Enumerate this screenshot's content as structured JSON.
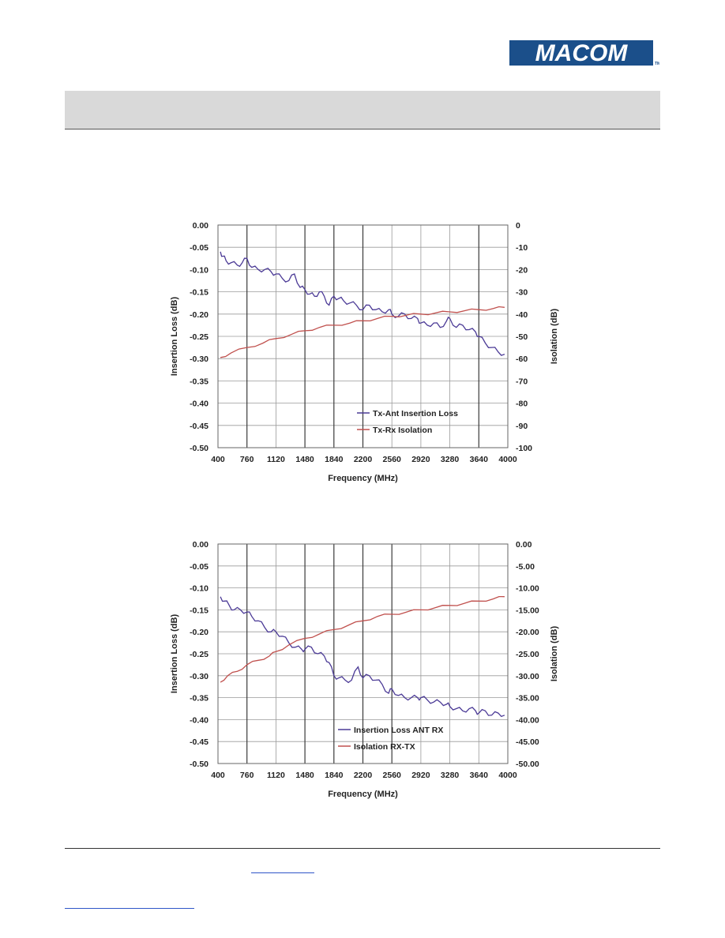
{
  "logo": {
    "text": "MACOM",
    "colors": {
      "fill": "#1b4f8a",
      "outline": "#0d2f55"
    }
  },
  "colors": {
    "series_blue": "#4b3a96",
    "series_red": "#c0504d",
    "grid": "#9a9a9a",
    "grid_dark": "#3a3a3a"
  },
  "chart_data": [
    {
      "type": "line",
      "title": "",
      "xlabel": "Frequency (MHz)",
      "ylabel": "Insertion Loss (dB)",
      "y2label": "Isolation (dB)",
      "x_ticks": [
        400,
        760,
        1120,
        1480,
        1840,
        2200,
        2560,
        2920,
        3280,
        3640,
        4000
      ],
      "y_ticks": [
        "0.00",
        "-0.05",
        "-0.10",
        "-0.15",
        "-0.20",
        "-0.25",
        "-0.30",
        "-0.35",
        "-0.40",
        "-0.45",
        "-0.50"
      ],
      "y2_ticks": [
        "0",
        "-10",
        "-20",
        "-30",
        "-40",
        "-50",
        "-60",
        "-70",
        "-80",
        "-90",
        "-100"
      ],
      "xlim": [
        400,
        4000
      ],
      "ylim": [
        -0.5,
        0
      ],
      "y2lim": [
        -100,
        0
      ],
      "grid": true,
      "legend_position": "bottom-right",
      "series": [
        {
          "name": "Tx-Ant Insertion Loss",
          "axis": "left",
          "color": "#4b3a96",
          "x": [
            430,
            460,
            500,
            560,
            640,
            700,
            760,
            820,
            900,
            980,
            1060,
            1120,
            1200,
            1280,
            1350,
            1420,
            1480,
            1540,
            1600,
            1660,
            1720,
            1780,
            1840,
            1900,
            1960,
            2040,
            2120,
            2200,
            2280,
            2360,
            2440,
            2520,
            2560,
            2640,
            2720,
            2800,
            2880,
            2920,
            3000,
            3080,
            3160,
            3240,
            3280,
            3360,
            3440,
            3520,
            3600,
            3640,
            3720,
            3800,
            3880,
            3960
          ],
          "y": [
            -0.06,
            -0.07,
            -0.08,
            -0.085,
            -0.09,
            -0.085,
            -0.075,
            -0.095,
            -0.1,
            -0.1,
            -0.105,
            -0.11,
            -0.12,
            -0.125,
            -0.11,
            -0.14,
            -0.145,
            -0.155,
            -0.16,
            -0.15,
            -0.16,
            -0.18,
            -0.16,
            -0.165,
            -0.17,
            -0.175,
            -0.18,
            -0.19,
            -0.18,
            -0.19,
            -0.195,
            -0.19,
            -0.2,
            -0.205,
            -0.2,
            -0.21,
            -0.21,
            -0.22,
            -0.225,
            -0.22,
            -0.23,
            -0.215,
            -0.21,
            -0.23,
            -0.225,
            -0.235,
            -0.24,
            -0.25,
            -0.265,
            -0.275,
            -0.285,
            -0.29
          ]
        },
        {
          "name": "Tx-Rx Isolation",
          "axis": "right",
          "color": "#c0504d",
          "x": [
            430,
            560,
            760,
            960,
            1120,
            1320,
            1480,
            1660,
            1840,
            2040,
            2200,
            2380,
            2560,
            2740,
            2920,
            3100,
            3280,
            3460,
            3640,
            3820,
            3960
          ],
          "y": [
            -59.5,
            -57.5,
            -55,
            -53,
            -51,
            -49,
            -47.5,
            -46,
            -45,
            -44,
            -43,
            -42,
            -41,
            -40.5,
            -40,
            -39.5,
            -39,
            -38.5,
            -38,
            -37.5,
            -37
          ]
        }
      ]
    },
    {
      "type": "line",
      "title": "",
      "xlabel": "Frequency (MHz)",
      "ylabel": "Insertion Loss (dB)",
      "y2label": "Isolation (dB)",
      "x_ticks": [
        400,
        760,
        1120,
        1480,
        1840,
        2200,
        2560,
        2920,
        3280,
        3640,
        4000
      ],
      "y_ticks": [
        "0.00",
        "-0.05",
        "-0.10",
        "-0.15",
        "-0.20",
        "-0.25",
        "-0.30",
        "-0.35",
        "-0.40",
        "-0.45",
        "-0.50"
      ],
      "y2_ticks": [
        "0.00",
        "-5.00",
        "-10.00",
        "-15.00",
        "-20.00",
        "-25.00",
        "-30.00",
        "-35.00",
        "-40.00",
        "-45.00",
        "-50.00"
      ],
      "xlim": [
        400,
        4000
      ],
      "ylim": [
        -0.5,
        0
      ],
      "y2lim": [
        -50,
        0
      ],
      "grid": true,
      "legend_position": "bottom-right",
      "series": [
        {
          "name": "Insertion Loss ANT RX",
          "axis": "left",
          "color": "#4b3a96",
          "x": [
            430,
            480,
            540,
            600,
            680,
            760,
            820,
            900,
            980,
            1060,
            1120,
            1200,
            1280,
            1360,
            1440,
            1480,
            1560,
            1640,
            1720,
            1780,
            1840,
            1900,
            1980,
            2060,
            2140,
            2200,
            2280,
            2360,
            2440,
            2520,
            2560,
            2640,
            2720,
            2800,
            2880,
            2920,
            3000,
            3080,
            3160,
            3240,
            3280,
            3360,
            3440,
            3520,
            3600,
            3640,
            3720,
            3800,
            3880,
            3960
          ],
          "y": [
            -0.12,
            -0.13,
            -0.14,
            -0.15,
            -0.15,
            -0.155,
            -0.165,
            -0.175,
            -0.19,
            -0.2,
            -0.2,
            -0.21,
            -0.225,
            -0.235,
            -0.24,
            -0.24,
            -0.235,
            -0.25,
            -0.255,
            -0.27,
            -0.3,
            -0.305,
            -0.31,
            -0.31,
            -0.28,
            -0.305,
            -0.3,
            -0.31,
            -0.32,
            -0.34,
            -0.33,
            -0.345,
            -0.35,
            -0.35,
            -0.35,
            -0.35,
            -0.355,
            -0.36,
            -0.36,
            -0.365,
            -0.37,
            -0.375,
            -0.38,
            -0.375,
            -0.38,
            -0.385,
            -0.38,
            -0.39,
            -0.385,
            -0.39
          ]
        },
        {
          "name": "Isolation RX-TX",
          "axis": "right",
          "color": "#c0504d",
          "x": [
            430,
            520,
            640,
            760,
            900,
            1040,
            1120,
            1280,
            1480,
            1660,
            1840,
            2020,
            2200,
            2380,
            2560,
            2740,
            2920,
            3100,
            3280,
            3460,
            3640,
            3820,
            3960
          ],
          "y": [
            -31.5,
            -30,
            -29,
            -27.5,
            -26.5,
            -25.5,
            -24.5,
            -23,
            -21.5,
            -20.5,
            -19.5,
            -18.5,
            -17.5,
            -16.5,
            -16,
            -15.5,
            -15,
            -14.5,
            -14,
            -13.5,
            -13,
            -12.5,
            -12
          ]
        }
      ]
    }
  ]
}
